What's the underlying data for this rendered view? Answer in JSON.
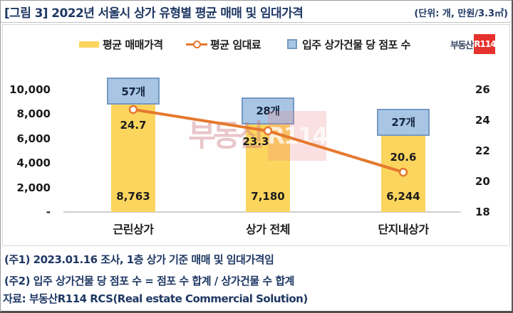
{
  "title": "[그림 3] 2022년 서울시 상가 유형별 평균 매매 및 임대가격",
  "unit_label": "(단위: 개, 만원/3.3㎡)",
  "logo": {
    "text": "부동산",
    "badge": "R114"
  },
  "watermark": {
    "text": "부동산",
    "badge": "R114"
  },
  "legend": [
    {
      "label": "평균 매매가격",
      "type": "bar",
      "color": "#FCD55E"
    },
    {
      "label": "평균 임대료",
      "type": "line",
      "color": "#E5782E"
    },
    {
      "label": "입주 상가건물 당 점포 수",
      "type": "box",
      "color": "#A8C6E4",
      "border": "#7598C4"
    }
  ],
  "chart_data": {
    "type": "bar",
    "title": "2022년 서울시 상가 유형별 평균 매매 및 임대가격",
    "categories": [
      "근린상가",
      "상가 전체",
      "단지내상가"
    ],
    "series": [
      {
        "name": "평균 매매가격",
        "chart": "bar",
        "axis": "left",
        "unit": "만원/3.3㎡",
        "values": [
          8763,
          7180,
          6244
        ],
        "labels": [
          "8,763",
          "7,180",
          "6,244"
        ],
        "color": "#FCD55E"
      },
      {
        "name": "평균 임대료",
        "chart": "line",
        "axis": "right",
        "unit": "만원/3.3㎡",
        "values": [
          24.7,
          23.3,
          20.6
        ],
        "labels": [
          "24.7",
          "23.3",
          "20.6"
        ],
        "color": "#E5782E"
      },
      {
        "name": "입주 상가건물 당 점포 수",
        "chart": "label-box",
        "unit": "개",
        "values": [
          57,
          28,
          27
        ],
        "labels": [
          "57개",
          "28개",
          "27개"
        ],
        "color": "#A8C6E4",
        "border": "#7598C4"
      }
    ],
    "left_axis": {
      "ticks": [
        "10,000",
        "8,000",
        "6,000",
        "4,000",
        "2,000",
        "-"
      ],
      "values": [
        10000,
        8000,
        6000,
        4000,
        2000,
        0
      ],
      "range": [
        0,
        10000
      ]
    },
    "right_axis": {
      "ticks": [
        "26",
        "24",
        "22",
        "20",
        "18"
      ],
      "values": [
        26,
        24,
        22,
        20,
        18
      ],
      "range": [
        18,
        26
      ]
    },
    "legend_position": "top",
    "grid": false
  },
  "notes": [
    "(주1) 2023.01.16 조사, 1층 상가 기준 매매 및 임대가격임",
    "(주2) 입주 상가건물 당 점포 수 = 점포 수 합계 / 상가건물 수 합계"
  ],
  "source": "자료: 부동산R114 RCS(Real estate Commercial Solution)"
}
